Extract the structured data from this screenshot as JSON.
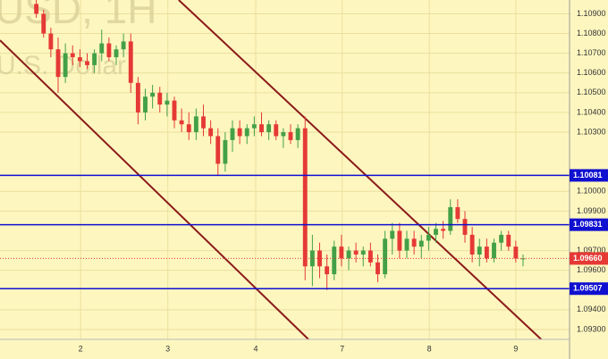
{
  "chart_data": {
    "type": "candlestick",
    "watermark": [
      "USD, 1H",
      "U.S. Dollar"
    ],
    "up_color": "#43a047",
    "down_color": "#e53935",
    "x": [
      5,
      6,
      7,
      8,
      9,
      10,
      11,
      12,
      13,
      14,
      15,
      16,
      17,
      18,
      19,
      20,
      21,
      22,
      23,
      24,
      25,
      26,
      27,
      28,
      29,
      30,
      31,
      32,
      33,
      34,
      35,
      36,
      37,
      38,
      39,
      40,
      41,
      42,
      43,
      44,
      45,
      46,
      47,
      48,
      49,
      50,
      51,
      52,
      53,
      54,
      55,
      56,
      57,
      58,
      59,
      60,
      61,
      62,
      63,
      64,
      65,
      66,
      67,
      68,
      69,
      70,
      71,
      72
    ],
    "open": [
      1.1095,
      1.109,
      1.108,
      1.1072,
      1.1058,
      1.107,
      1.1068,
      1.1066,
      1.1064,
      1.107,
      1.1075,
      1.1068,
      1.1072,
      1.1076,
      1.1055,
      1.104,
      1.1048,
      1.105,
      1.1044,
      1.1046,
      1.1036,
      1.1034,
      1.103,
      1.1038,
      1.1032,
      1.1028,
      1.1014,
      1.1026,
      1.1032,
      1.1028,
      1.1032,
      1.1034,
      1.103,
      1.1034,
      1.1028,
      1.103,
      1.1026,
      1.1032,
      1.0962,
      1.097,
      1.0962,
      1.0958,
      1.0972,
      1.0966,
      1.097,
      1.0968,
      1.097,
      1.0964,
      1.0958,
      1.0976,
      1.098,
      1.097,
      1.0976,
      1.0972,
      1.0975,
      1.0978,
      1.0981,
      1.098,
      1.0992,
      1.0986,
      1.0978,
      1.0968,
      1.0972,
      1.0966,
      1.0974,
      1.0978,
      1.0972,
      1.0966
    ],
    "high": [
      1.1097,
      1.1092,
      1.1083,
      1.1078,
      1.1075,
      1.1074,
      1.1072,
      1.107,
      1.1072,
      1.1082,
      1.1078,
      1.1074,
      1.108,
      1.108,
      1.1058,
      1.1052,
      1.1054,
      1.1053,
      1.105,
      1.1048,
      1.1042,
      1.104,
      1.1042,
      1.1044,
      1.1036,
      1.1032,
      1.103,
      1.1036,
      1.1036,
      1.1034,
      1.1038,
      1.104,
      1.1036,
      1.1036,
      1.1032,
      1.1034,
      1.1034,
      1.1038,
      1.0978,
      1.0974,
      1.0968,
      1.0975,
      1.0978,
      1.0972,
      1.0974,
      1.0972,
      1.0974,
      1.0968,
      1.098,
      1.0984,
      1.0984,
      1.098,
      1.098,
      1.0978,
      1.0982,
      1.0984,
      1.0985,
      1.0996,
      1.0996,
      1.099,
      1.0982,
      1.0976,
      1.0976,
      1.0976,
      1.098,
      1.098,
      1.0975,
      1.0968
    ],
    "low": [
      1.1088,
      1.1078,
      1.1068,
      1.105,
      1.1055,
      1.1064,
      1.1063,
      1.1062,
      1.106,
      1.1066,
      1.1066,
      1.1064,
      1.1068,
      1.105,
      1.1034,
      1.1036,
      1.1042,
      1.104,
      1.1038,
      1.1032,
      1.103,
      1.1026,
      1.1026,
      1.1028,
      1.1024,
      1.1008,
      1.101,
      1.102,
      1.1024,
      1.1024,
      1.1028,
      1.1028,
      1.1026,
      1.1026,
      1.1022,
      1.1024,
      1.1022,
      1.0955,
      1.0952,
      1.0956,
      1.095,
      1.0955,
      1.0962,
      1.096,
      1.0964,
      1.0962,
      1.0962,
      1.0954,
      1.0956,
      1.0968,
      1.0966,
      1.0966,
      1.0968,
      1.0966,
      1.097,
      1.0974,
      1.0976,
      1.0978,
      1.0984,
      1.0974,
      1.0964,
      1.0962,
      1.0964,
      1.0964,
      1.097,
      1.097,
      1.0964,
      1.0962
    ],
    "close": [
      1.109,
      1.108,
      1.1072,
      1.1058,
      1.107,
      1.1068,
      1.1066,
      1.1064,
      1.107,
      1.1075,
      1.1068,
      1.1072,
      1.1076,
      1.1055,
      1.104,
      1.1048,
      1.105,
      1.1044,
      1.1046,
      1.1036,
      1.1034,
      1.103,
      1.1038,
      1.1032,
      1.1028,
      1.1014,
      1.1026,
      1.1032,
      1.1028,
      1.1032,
      1.1034,
      1.103,
      1.1034,
      1.1028,
      1.103,
      1.1026,
      1.1032,
      1.0962,
      1.097,
      1.0962,
      1.0958,
      1.0972,
      1.0966,
      1.097,
      1.0968,
      1.097,
      1.0964,
      1.0958,
      1.0976,
      1.098,
      1.097,
      1.0976,
      1.0972,
      1.0975,
      1.0978,
      1.0981,
      1.098,
      1.0992,
      1.0986,
      1.0978,
      1.0968,
      1.0972,
      1.0966,
      1.0974,
      1.0978,
      1.0972,
      1.0966,
      1.0966
    ],
    "xlim": [
      0,
      78.4
    ],
    "ylim": [
      1.0925,
      1.1097
    ],
    "xticks": [
      {
        "value": 11.1,
        "label": "2"
      },
      {
        "value": 23.1,
        "label": "3"
      },
      {
        "value": 35.2,
        "label": "4"
      },
      {
        "value": 47.1,
        "label": "7"
      },
      {
        "value": 59.1,
        "label": "8"
      },
      {
        "value": 71.0,
        "label": "9"
      }
    ],
    "yticks": [
      {
        "value": 1.093,
        "label": "1.09300"
      },
      {
        "value": 1.094,
        "label": "1.09400"
      },
      {
        "value": 1.096,
        "label": "1.09600"
      },
      {
        "value": 1.097,
        "label": "1.09700"
      },
      {
        "value": 1.099,
        "label": "1.09900"
      },
      {
        "value": 1.1,
        "label": "1.10000"
      },
      {
        "value": 1.103,
        "label": "1.10300"
      },
      {
        "value": 1.104,
        "label": "1.10400"
      },
      {
        "value": 1.105,
        "label": "1.10500"
      },
      {
        "value": 1.106,
        "label": "1.10600"
      },
      {
        "value": 1.107,
        "label": "1.10700"
      },
      {
        "value": 1.108,
        "label": "1.10800"
      },
      {
        "value": 1.109,
        "label": "1.10900"
      }
    ],
    "grid": true,
    "levels": [
      {
        "value": 1.10081,
        "label": "1.10081",
        "color": "#1010d0"
      },
      {
        "value": 1.09831,
        "label": "1.09831",
        "color": "#1010d0"
      },
      {
        "value": 1.09507,
        "label": "1.09507",
        "color": "#1010d0"
      }
    ],
    "current": {
      "value": 1.0966,
      "label": "1.09660",
      "color": "#e53935"
    },
    "trendlines": [
      {
        "x": [
          0,
          42.46
        ],
        "y": [
          1.10766,
          1.0925
        ],
        "color": "#8b1a1a"
      },
      {
        "x": [
          24.6,
          74.5
        ],
        "y": [
          1.1097,
          1.0925
        ],
        "color": "#8b1a1a"
      }
    ]
  }
}
